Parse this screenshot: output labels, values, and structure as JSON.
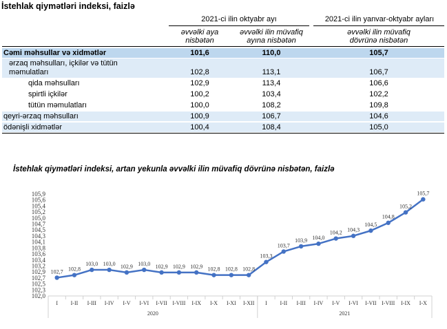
{
  "table": {
    "title": "İstehlak qiymətləri indeksi, faizlə",
    "group1": "2021-ci ilin oktyabr ayı",
    "group2": "2021-ci ilin yanvar-oktyabr ayları",
    "col1_line1": "əvvəlki aya",
    "col1_line2": "nisbətən",
    "col2_line1": "əvvəlki ilin müvafiq",
    "col2_line2": "ayına nisbətən",
    "col3_line1": "əvvəlki ilin müvafiq",
    "col3_line2": "dövrünə nisbətən",
    "rows": [
      {
        "label": "Cəmi məhsullar və xidmətlər",
        "c1": "101,6",
        "c2": "110,0",
        "c3": "105,7"
      },
      {
        "label": "ərzaq məhsulları, içkilər və tütün",
        "label2": "məmulatları",
        "c1": "102,8",
        "c2": "113,1",
        "c3": "106,7"
      },
      {
        "label": "qida məhsulları",
        "c1": "102,9",
        "c2": "113,4",
        "c3": "106,6"
      },
      {
        "label": "spirtli içkilər",
        "c1": "100,2",
        "c2": "103,4",
        "c3": "102,2"
      },
      {
        "label": "tütün məmulatları",
        "c1": "100,0",
        "c2": "108,2",
        "c3": "109,8"
      },
      {
        "label": "qeyri-ərzaq məhsulları",
        "c1": "100,9",
        "c2": "106,7",
        "c3": "104,6"
      },
      {
        "label": "ödənişli xidmətlər",
        "c1": "100,4",
        "c2": "108,4",
        "c3": "105,0"
      }
    ],
    "colors": {
      "highlight_dark": "#bdd7ee",
      "highlight_light": "#deebf7"
    }
  },
  "chart_title": "İstehlak qiymətləri indeksi, artan yekunla əvvəlki ilin müvafiq dövrünə nisbətən, faizlə",
  "chart_data": {
    "type": "line",
    "categories": [
      "I",
      "I-II",
      "I-III",
      "I-IV",
      "I-V",
      "I-VI",
      "I-VII",
      "I-VIII",
      "I-IX",
      "I-X",
      "I-XI",
      "I-XII",
      "I",
      "I-II",
      "I-III",
      "I-IV",
      "I-V",
      "I-VI",
      "I-VII",
      "I-VIII",
      "I-IX",
      "I-X"
    ],
    "groups": [
      {
        "label": "2020",
        "count": 12
      },
      {
        "label": "2021",
        "count": 10
      }
    ],
    "values": [
      102.7,
      102.8,
      103.0,
      103.0,
      102.9,
      103.0,
      102.9,
      102.9,
      102.9,
      102.8,
      102.8,
      102.8,
      103.3,
      103.7,
      103.9,
      104.0,
      104.2,
      104.3,
      104.5,
      104.8,
      105.2,
      105.7
    ],
    "labels": [
      "102,7",
      "102,8",
      "103,0",
      "103,0",
      "102,9",
      "103,0",
      "102,9",
      "102,9",
      "102,9",
      "102,8",
      "102,8",
      "102,8",
      "103,3",
      "103,7",
      "103,9",
      "104,0",
      "104,2",
      "104,3",
      "104,5",
      "104,8",
      "105,2",
      "105,7"
    ],
    "yticks": [
      "102,0",
      "102,3",
      "102,5",
      "102,7",
      "102,9",
      "103,2",
      "103,4",
      "103,6",
      "103,8",
      "104,1",
      "104,3",
      "104,5",
      "104,7",
      "105,0",
      "105,2",
      "105,4",
      "105,6",
      "105,9"
    ],
    "ylim": [
      102.0,
      105.9
    ],
    "color": "#4472c4",
    "grid": false
  }
}
